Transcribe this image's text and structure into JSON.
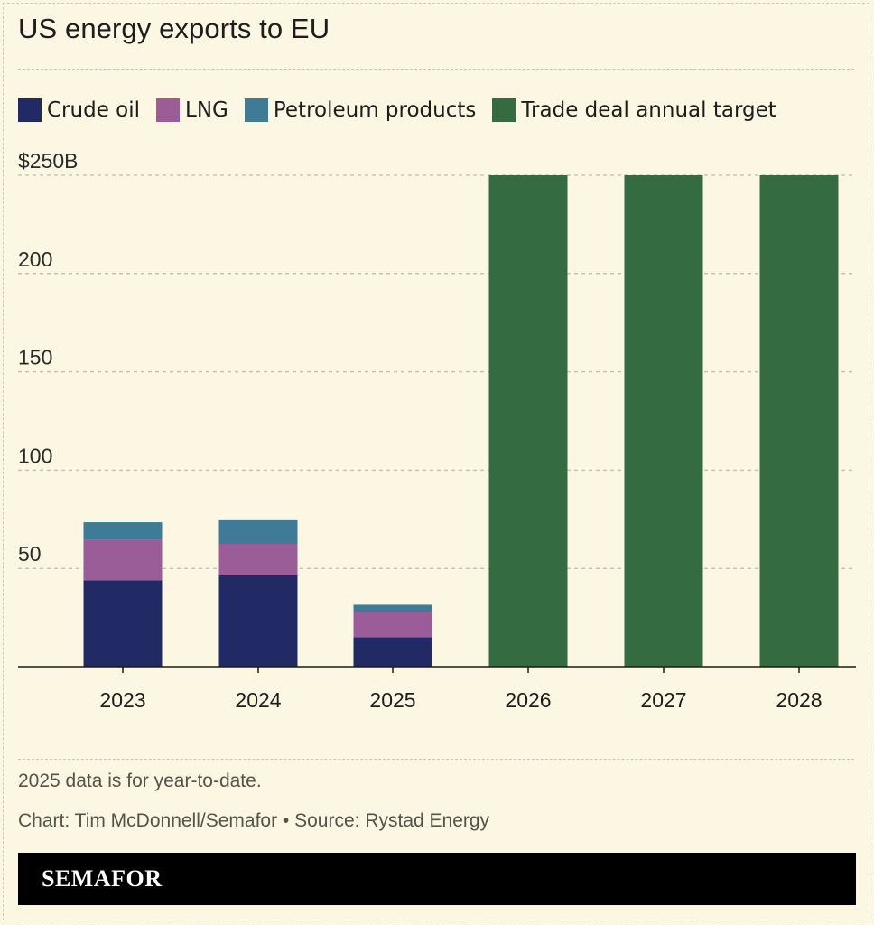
{
  "header": {
    "title": "US energy exports to EU"
  },
  "chart_data": {
    "type": "bar",
    "stacked": true,
    "title": "US energy exports to EU",
    "categories": [
      "2023",
      "2024",
      "2025",
      "2026",
      "2027",
      "2028"
    ],
    "series": [
      {
        "name": "Crude oil",
        "color": "#222a66",
        "values": [
          44,
          46.5,
          15,
          0,
          0,
          0
        ]
      },
      {
        "name": "LNG",
        "color": "#9a5d97",
        "values": [
          20.5,
          16,
          13,
          0,
          0,
          0
        ]
      },
      {
        "name": "Petroleum products",
        "color": "#3f7b96",
        "values": [
          9,
          12,
          3.5,
          0,
          0,
          0
        ]
      },
      {
        "name": "Trade deal annual target",
        "color": "#346b41",
        "values": [
          0,
          0,
          0,
          250,
          250,
          250
        ]
      }
    ],
    "yticks": [
      {
        "value": 50,
        "label": "50"
      },
      {
        "value": 100,
        "label": "100"
      },
      {
        "value": 150,
        "label": "150"
      },
      {
        "value": 200,
        "label": "200"
      },
      {
        "value": 250,
        "label": "$250B"
      }
    ],
    "ylim": [
      0,
      250
    ],
    "xlabel": "",
    "ylabel": "",
    "grid": true,
    "legend_position": "top"
  },
  "footer": {
    "note": "2025 data is for year-to-date.",
    "credit": "Chart: Tim McDonnell/Semafor • Source: Rystad Energy",
    "brand": "SEMAFOR"
  }
}
